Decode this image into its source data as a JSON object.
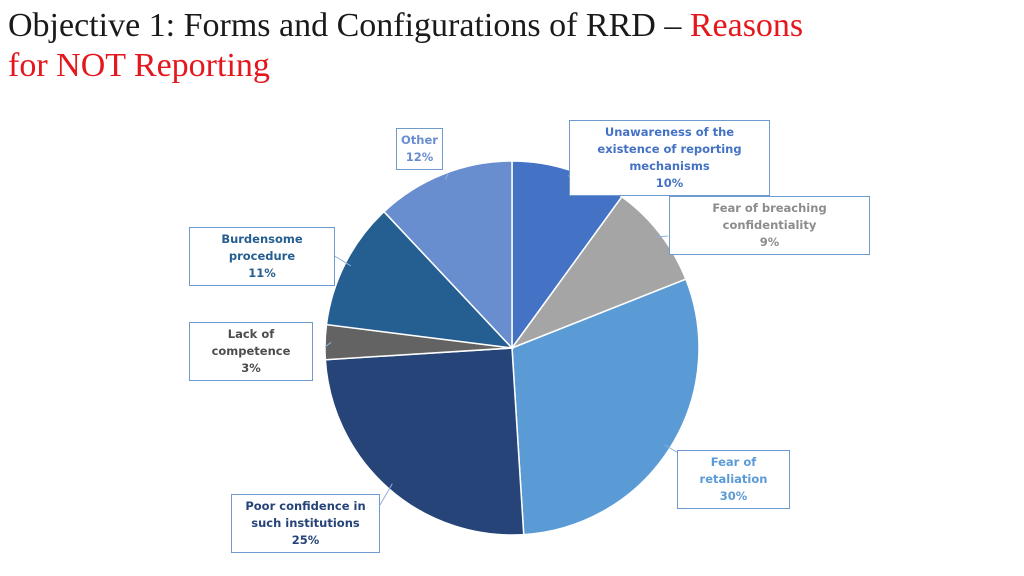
{
  "title": {
    "main": "Objective 1: Forms and Configurations of RRD – ",
    "accent": "Reasons",
    "accent2": "for NOT Reporting"
  },
  "colors": {
    "title_main": "#1a1a1a",
    "title_accent": "#e5171e",
    "callout_border": "#6f9ad0"
  },
  "chart_data": {
    "type": "pie",
    "title": "",
    "slices": [
      {
        "label": "Unawareness of the existence of reporting mechanisms",
        "value": 10,
        "value_label": "10%",
        "color": "#4472c4",
        "label_color": "#4472c4"
      },
      {
        "label": "Fear of breaching confidentiality",
        "value": 9,
        "value_label": "9%",
        "color": "#a5a5a5",
        "label_color": "#8c8c8c"
      },
      {
        "label": "Fear of retaliation",
        "value": 30,
        "value_label": "30%",
        "color": "#5b9bd5",
        "label_color": "#5b9bd5"
      },
      {
        "label": "Poor confidence in such institutions",
        "value": 25,
        "value_label": "25%",
        "color": "#264478",
        "label_color": "#264478"
      },
      {
        "label": "Lack of competence",
        "value": 3,
        "value_label": "3%",
        "color": "#636363",
        "label_color": "#4d4d4d"
      },
      {
        "label": "Burdensome procedure",
        "value": 11,
        "value_label": "11%",
        "color": "#255e91",
        "label_color": "#255e91"
      },
      {
        "label": "Other",
        "value": 12,
        "value_label": "12%",
        "color": "#698ed0",
        "label_color": "#698ed0"
      }
    ]
  }
}
